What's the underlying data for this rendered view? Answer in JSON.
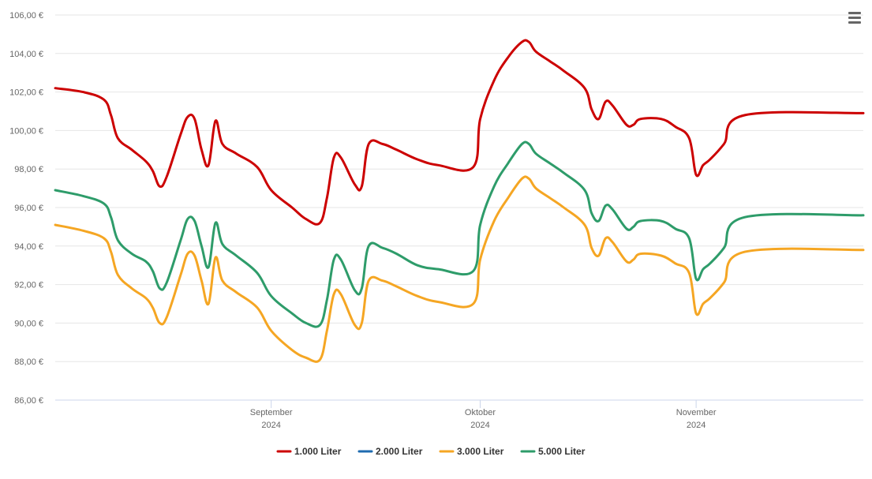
{
  "colors": {
    "grid": "#e6e6e6",
    "axis": "#ccd6eb",
    "tick_text": "#666666",
    "legend_text": "#333333"
  },
  "menu": {
    "icon": "hamburger-icon"
  },
  "chart_data": {
    "type": "line",
    "title": "",
    "xlabel": "",
    "ylabel": "",
    "ylim": [
      86,
      106
    ],
    "yticks": [
      86,
      88,
      90,
      92,
      94,
      96,
      98,
      100,
      102,
      104,
      106
    ],
    "ytick_labels": [
      "86,00 €",
      "88,00 €",
      "90,00 €",
      "92,00 €",
      "94,00 €",
      "96,00 €",
      "98,00 €",
      "100,00 €",
      "102,00 €",
      "104,00 €",
      "106,00 €"
    ],
    "xlim": [
      "2024-08-01",
      "2024-11-25"
    ],
    "xticks": [
      {
        "date": "2024-09-01",
        "month": "September",
        "year": "2024"
      },
      {
        "date": "2024-10-01",
        "month": "Oktober",
        "year": "2024"
      },
      {
        "date": "2024-11-01",
        "month": "November",
        "year": "2024"
      }
    ],
    "grid": true,
    "legend_position": "bottom-center",
    "series": [
      {
        "name": "1.000 Liter",
        "color": "#cc0000",
        "points": [
          [
            "2024-08-01",
            102.2
          ],
          [
            "2024-08-05",
            102.0
          ],
          [
            "2024-08-08",
            101.6
          ],
          [
            "2024-08-09",
            100.8
          ],
          [
            "2024-08-10",
            99.6
          ],
          [
            "2024-08-12",
            99.0
          ],
          [
            "2024-08-14",
            98.4
          ],
          [
            "2024-08-15",
            97.9
          ],
          [
            "2024-08-16",
            97.1
          ],
          [
            "2024-08-17",
            97.6
          ],
          [
            "2024-08-19",
            99.8
          ],
          [
            "2024-08-20",
            100.7
          ],
          [
            "2024-08-21",
            100.6
          ],
          [
            "2024-08-22",
            99.0
          ],
          [
            "2024-08-23",
            98.2
          ],
          [
            "2024-08-24",
            100.5
          ],
          [
            "2024-08-25",
            99.3
          ],
          [
            "2024-08-27",
            98.8
          ],
          [
            "2024-08-30",
            98.1
          ],
          [
            "2024-09-01",
            96.9
          ],
          [
            "2024-09-04",
            96.0
          ],
          [
            "2024-09-06",
            95.4
          ],
          [
            "2024-09-08",
            95.2
          ],
          [
            "2024-09-09",
            96.5
          ],
          [
            "2024-09-10",
            98.6
          ],
          [
            "2024-09-11",
            98.6
          ],
          [
            "2024-09-13",
            97.2
          ],
          [
            "2024-09-14",
            97.1
          ],
          [
            "2024-09-15",
            99.3
          ],
          [
            "2024-09-17",
            99.3
          ],
          [
            "2024-09-19",
            99.0
          ],
          [
            "2024-09-22",
            98.5
          ],
          [
            "2024-09-25",
            98.2
          ],
          [
            "2024-09-30",
            98.1
          ],
          [
            "2024-10-01",
            100.6
          ],
          [
            "2024-10-03",
            102.6
          ],
          [
            "2024-10-05",
            103.8
          ],
          [
            "2024-10-07",
            104.6
          ],
          [
            "2024-10-08",
            104.6
          ],
          [
            "2024-10-09",
            104.1
          ],
          [
            "2024-10-11",
            103.6
          ],
          [
            "2024-10-13",
            103.1
          ],
          [
            "2024-10-16",
            102.2
          ],
          [
            "2024-10-17",
            101.1
          ],
          [
            "2024-10-18",
            100.6
          ],
          [
            "2024-10-19",
            101.5
          ],
          [
            "2024-10-20",
            101.3
          ],
          [
            "2024-10-22",
            100.3
          ],
          [
            "2024-10-23",
            100.3
          ],
          [
            "2024-10-24",
            100.6
          ],
          [
            "2024-10-27",
            100.6
          ],
          [
            "2024-10-29",
            100.2
          ],
          [
            "2024-10-31",
            99.6
          ],
          [
            "2024-11-01",
            97.7
          ],
          [
            "2024-11-02",
            98.2
          ],
          [
            "2024-11-03",
            98.5
          ],
          [
            "2024-11-05",
            99.3
          ],
          [
            "2024-11-08",
            100.8
          ],
          [
            "2024-11-25",
            100.9
          ]
        ]
      },
      {
        "name": "2.000 Liter",
        "color": "#1f6bb0",
        "points": []
      },
      {
        "name": "3.000 Liter",
        "color": "#f5a623",
        "points": [
          [
            "2024-08-01",
            95.1
          ],
          [
            "2024-08-05",
            94.8
          ],
          [
            "2024-08-08",
            94.4
          ],
          [
            "2024-08-09",
            93.7
          ],
          [
            "2024-08-10",
            92.5
          ],
          [
            "2024-08-12",
            91.8
          ],
          [
            "2024-08-14",
            91.3
          ],
          [
            "2024-08-15",
            90.8
          ],
          [
            "2024-08-16",
            90.0
          ],
          [
            "2024-08-17",
            90.3
          ],
          [
            "2024-08-19",
            92.5
          ],
          [
            "2024-08-20",
            93.6
          ],
          [
            "2024-08-21",
            93.5
          ],
          [
            "2024-08-22",
            92.2
          ],
          [
            "2024-08-23",
            91.0
          ],
          [
            "2024-08-24",
            93.4
          ],
          [
            "2024-08-25",
            92.2
          ],
          [
            "2024-08-27",
            91.6
          ],
          [
            "2024-08-30",
            90.8
          ],
          [
            "2024-09-01",
            89.6
          ],
          [
            "2024-09-04",
            88.6
          ],
          [
            "2024-09-06",
            88.2
          ],
          [
            "2024-09-08",
            88.1
          ],
          [
            "2024-09-09",
            89.6
          ],
          [
            "2024-09-10",
            91.5
          ],
          [
            "2024-09-11",
            91.5
          ],
          [
            "2024-09-13",
            89.9
          ],
          [
            "2024-09-14",
            90.0
          ],
          [
            "2024-09-15",
            92.2
          ],
          [
            "2024-09-17",
            92.2
          ],
          [
            "2024-09-19",
            91.9
          ],
          [
            "2024-09-22",
            91.4
          ],
          [
            "2024-09-25",
            91.1
          ],
          [
            "2024-09-30",
            91.0
          ],
          [
            "2024-10-01",
            93.3
          ],
          [
            "2024-10-03",
            95.3
          ],
          [
            "2024-10-05",
            96.5
          ],
          [
            "2024-10-07",
            97.5
          ],
          [
            "2024-10-08",
            97.5
          ],
          [
            "2024-10-09",
            97.0
          ],
          [
            "2024-10-11",
            96.5
          ],
          [
            "2024-10-13",
            96.0
          ],
          [
            "2024-10-16",
            95.1
          ],
          [
            "2024-10-17",
            93.9
          ],
          [
            "2024-10-18",
            93.5
          ],
          [
            "2024-10-19",
            94.4
          ],
          [
            "2024-10-20",
            94.2
          ],
          [
            "2024-10-22",
            93.2
          ],
          [
            "2024-10-23",
            93.3
          ],
          [
            "2024-10-24",
            93.6
          ],
          [
            "2024-10-27",
            93.5
          ],
          [
            "2024-10-29",
            93.1
          ],
          [
            "2024-10-31",
            92.6
          ],
          [
            "2024-11-01",
            90.5
          ],
          [
            "2024-11-02",
            91.0
          ],
          [
            "2024-11-03",
            91.3
          ],
          [
            "2024-11-05",
            92.1
          ],
          [
            "2024-11-08",
            93.7
          ],
          [
            "2024-11-25",
            93.8
          ]
        ]
      },
      {
        "name": "5.000 Liter",
        "color": "#2e9c6a",
        "points": [
          [
            "2024-08-01",
            96.9
          ],
          [
            "2024-08-05",
            96.6
          ],
          [
            "2024-08-08",
            96.2
          ],
          [
            "2024-08-09",
            95.5
          ],
          [
            "2024-08-10",
            94.3
          ],
          [
            "2024-08-12",
            93.6
          ],
          [
            "2024-08-14",
            93.2
          ],
          [
            "2024-08-15",
            92.7
          ],
          [
            "2024-08-16",
            91.8
          ],
          [
            "2024-08-17",
            92.1
          ],
          [
            "2024-08-19",
            94.3
          ],
          [
            "2024-08-20",
            95.4
          ],
          [
            "2024-08-21",
            95.3
          ],
          [
            "2024-08-22",
            94.0
          ],
          [
            "2024-08-23",
            92.9
          ],
          [
            "2024-08-24",
            95.2
          ],
          [
            "2024-08-25",
            94.1
          ],
          [
            "2024-08-27",
            93.5
          ],
          [
            "2024-08-30",
            92.6
          ],
          [
            "2024-09-01",
            91.4
          ],
          [
            "2024-09-04",
            90.5
          ],
          [
            "2024-09-06",
            90.0
          ],
          [
            "2024-09-08",
            89.9
          ],
          [
            "2024-09-09",
            91.2
          ],
          [
            "2024-09-10",
            93.3
          ],
          [
            "2024-09-11",
            93.3
          ],
          [
            "2024-09-13",
            91.7
          ],
          [
            "2024-09-14",
            91.8
          ],
          [
            "2024-09-15",
            94.0
          ],
          [
            "2024-09-17",
            93.9
          ],
          [
            "2024-09-19",
            93.6
          ],
          [
            "2024-09-22",
            93.0
          ],
          [
            "2024-09-25",
            92.8
          ],
          [
            "2024-09-30",
            92.7
          ],
          [
            "2024-10-01",
            95.1
          ],
          [
            "2024-10-03",
            97.1
          ],
          [
            "2024-10-05",
            98.3
          ],
          [
            "2024-10-07",
            99.3
          ],
          [
            "2024-10-08",
            99.3
          ],
          [
            "2024-10-09",
            98.8
          ],
          [
            "2024-10-11",
            98.3
          ],
          [
            "2024-10-13",
            97.8
          ],
          [
            "2024-10-16",
            96.9
          ],
          [
            "2024-10-17",
            95.7
          ],
          [
            "2024-10-18",
            95.3
          ],
          [
            "2024-10-19",
            96.1
          ],
          [
            "2024-10-20",
            95.9
          ],
          [
            "2024-10-22",
            94.9
          ],
          [
            "2024-10-23",
            95.0
          ],
          [
            "2024-10-24",
            95.3
          ],
          [
            "2024-10-27",
            95.3
          ],
          [
            "2024-10-29",
            94.9
          ],
          [
            "2024-10-31",
            94.4
          ],
          [
            "2024-11-01",
            92.3
          ],
          [
            "2024-11-02",
            92.8
          ],
          [
            "2024-11-03",
            93.1
          ],
          [
            "2024-11-05",
            93.9
          ],
          [
            "2024-11-08",
            95.5
          ],
          [
            "2024-11-25",
            95.6
          ]
        ]
      }
    ]
  }
}
